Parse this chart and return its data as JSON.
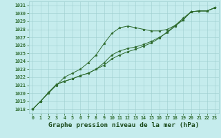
{
  "x": [
    0,
    1,
    2,
    3,
    4,
    5,
    6,
    7,
    8,
    9,
    10,
    11,
    12,
    13,
    14,
    15,
    16,
    17,
    18,
    19,
    20,
    21,
    22,
    23
  ],
  "line1": [
    1018.0,
    1019.0,
    1020.0,
    1021.0,
    1022.0,
    1022.5,
    1023.0,
    1023.8,
    1024.8,
    1026.2,
    1027.5,
    1028.2,
    1028.4,
    1028.2,
    1028.0,
    1027.8,
    1027.8,
    1028.0,
    1028.5,
    1029.2,
    1030.2,
    1030.3,
    1030.3,
    1030.7
  ],
  "line2": [
    1018.0,
    1019.0,
    1020.1,
    1021.1,
    1021.5,
    1021.8,
    1022.2,
    1022.5,
    1023.0,
    1023.8,
    1024.8,
    1025.3,
    1025.6,
    1025.8,
    1026.1,
    1026.5,
    1027.0,
    1027.6,
    1028.4,
    1029.2,
    1030.2,
    1030.3,
    1030.3,
    1030.7
  ],
  "line3": [
    1018.0,
    1019.0,
    1020.1,
    1021.1,
    1021.5,
    1021.8,
    1022.2,
    1022.5,
    1023.0,
    1023.5,
    1024.3,
    1024.8,
    1025.2,
    1025.5,
    1025.9,
    1026.3,
    1026.9,
    1027.7,
    1028.5,
    1029.4,
    1030.2,
    1030.3,
    1030.3,
    1030.7
  ],
  "ylim": [
    1017.5,
    1031.5
  ],
  "xlim": [
    -0.5,
    23.5
  ],
  "yticks": [
    1018,
    1019,
    1020,
    1021,
    1022,
    1023,
    1024,
    1025,
    1026,
    1027,
    1028,
    1029,
    1030,
    1031
  ],
  "xticks": [
    0,
    1,
    2,
    3,
    4,
    5,
    6,
    7,
    8,
    9,
    10,
    11,
    12,
    13,
    14,
    15,
    16,
    17,
    18,
    19,
    20,
    21,
    22,
    23
  ],
  "xlabel": "Graphe pression niveau de la mer (hPa)",
  "line_color": "#2d6a2d",
  "marker": "*",
  "bg_color": "#c5eced",
  "grid_color": "#9ecfcf",
  "tick_label_color": "#2d6a2d",
  "xlabel_color": "#1a4a1a",
  "tick_fontsize": 4.8,
  "xlabel_fontsize": 6.8,
  "marker_size": 2.5,
  "line_width": 0.7
}
